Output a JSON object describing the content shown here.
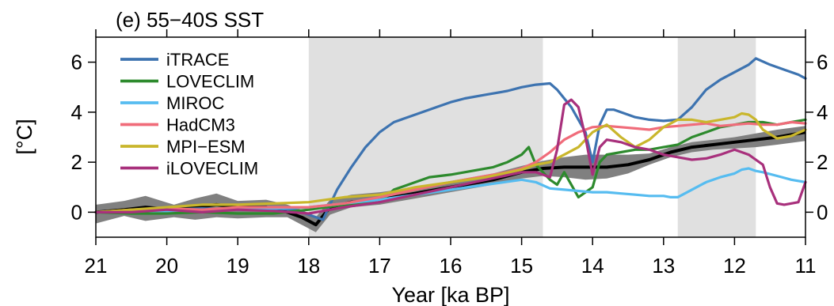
{
  "chart_data": {
    "type": "line",
    "title": "(e) 55−40S SST",
    "xlabel": "Year [ka BP]",
    "ylabel": "[°C]",
    "xlim": [
      21,
      11
    ],
    "x_reversed": true,
    "ylim": [
      -1,
      7
    ],
    "xticks": [
      "21",
      "20",
      "19",
      "18",
      "17",
      "16",
      "15",
      "14",
      "13",
      "12",
      "11"
    ],
    "yticks": [
      "0",
      "2",
      "4",
      "6"
    ],
    "grid": false,
    "legend_position": "top-left",
    "shaded_periods": [
      [
        18,
        14.7
      ],
      [
        12.8,
        11.7
      ]
    ],
    "shade_color": "#e0e0e0",
    "reconstruction": {
      "mean_color": "#000000",
      "band_color": "#808080",
      "x": [
        21.0,
        20.6,
        20.3,
        19.9,
        19.6,
        19.3,
        19.0,
        18.6,
        18.3,
        18.1,
        17.9,
        17.7,
        17.4,
        17.0,
        16.6,
        16.2,
        15.8,
        15.4,
        15.0,
        14.7,
        14.4,
        14.1,
        13.8,
        13.5,
        13.2,
        12.9,
        12.6,
        12.3,
        12.0,
        11.7,
        11.4,
        11.0
      ],
      "mean": [
        0.0,
        0.1,
        0.2,
        0.1,
        0.2,
        0.3,
        0.2,
        0.2,
        0.0,
        -0.2,
        -0.5,
        0.2,
        0.4,
        0.5,
        0.7,
        0.9,
        1.1,
        1.3,
        1.6,
        1.75,
        1.8,
        1.8,
        1.8,
        1.9,
        2.1,
        2.4,
        2.6,
        2.7,
        2.8,
        2.9,
        3.0,
        3.2
      ],
      "lower": [
        -0.45,
        -0.15,
        -0.35,
        -0.2,
        -0.3,
        -0.2,
        -0.25,
        -0.2,
        -0.2,
        -0.5,
        -0.8,
        -0.1,
        0.2,
        0.3,
        0.5,
        0.7,
        0.9,
        1.1,
        1.35,
        1.45,
        1.4,
        1.3,
        1.35,
        1.55,
        1.9,
        2.2,
        2.4,
        2.5,
        2.55,
        2.6,
        2.7,
        2.85
      ],
      "upper": [
        0.3,
        0.45,
        0.65,
        0.3,
        0.55,
        0.75,
        0.45,
        0.5,
        0.3,
        0.1,
        -0.2,
        0.5,
        0.7,
        0.8,
        0.95,
        1.15,
        1.35,
        1.55,
        1.85,
        2.05,
        2.2,
        2.3,
        2.3,
        2.3,
        2.35,
        2.6,
        2.8,
        2.9,
        3.0,
        3.15,
        3.3,
        3.45
      ]
    },
    "series": [
      {
        "name": "iTRACE",
        "color": "#3d73b0",
        "x": [
          21.0,
          20.5,
          20.0,
          19.5,
          19.0,
          18.5,
          18.2,
          18.0,
          17.8,
          17.6,
          17.4,
          17.2,
          17.0,
          16.8,
          16.5,
          16.2,
          16.0,
          15.8,
          15.5,
          15.2,
          15.0,
          14.8,
          14.6,
          14.5,
          14.3,
          14.1,
          14.0,
          13.9,
          13.8,
          13.7,
          13.6,
          13.4,
          13.2,
          13.0,
          12.8,
          12.6,
          12.4,
          12.2,
          12.0,
          11.8,
          11.7,
          11.5,
          11.3,
          11.1,
          11.0
        ],
        "y": [
          0.0,
          0.05,
          0.1,
          0.15,
          0.1,
          0.15,
          0.1,
          -0.1,
          -0.3,
          0.9,
          1.8,
          2.6,
          3.2,
          3.6,
          3.9,
          4.2,
          4.4,
          4.55,
          4.7,
          4.85,
          5.0,
          5.1,
          5.15,
          4.9,
          4.2,
          3.2,
          2.0,
          3.5,
          4.1,
          4.1,
          4.0,
          3.8,
          3.7,
          3.65,
          3.7,
          4.2,
          4.9,
          5.3,
          5.6,
          5.9,
          6.15,
          5.9,
          5.7,
          5.5,
          5.35
        ]
      },
      {
        "name": "LOVECLIM",
        "color": "#2d8a2d",
        "x": [
          21.0,
          20.5,
          20.0,
          19.5,
          19.0,
          18.5,
          18.0,
          17.5,
          17.0,
          16.8,
          16.6,
          16.3,
          16.0,
          15.7,
          15.4,
          15.2,
          15.0,
          14.9,
          14.8,
          14.7,
          14.6,
          14.5,
          14.4,
          14.2,
          14.0,
          13.9,
          13.8,
          13.6,
          13.4,
          13.2,
          13.0,
          12.8,
          12.6,
          12.4,
          12.2,
          12.0,
          11.8,
          11.6,
          11.4,
          11.2,
          11.0
        ],
        "y": [
          0.0,
          -0.05,
          -0.05,
          0.0,
          -0.05,
          -0.05,
          0.1,
          0.3,
          0.4,
          0.9,
          1.1,
          1.4,
          1.5,
          1.65,
          1.8,
          2.0,
          2.3,
          2.6,
          1.9,
          1.6,
          1.3,
          1.1,
          1.6,
          0.6,
          1.0,
          2.0,
          2.3,
          2.4,
          2.5,
          2.5,
          2.6,
          2.7,
          3.0,
          3.2,
          3.4,
          3.5,
          3.6,
          3.6,
          3.5,
          3.6,
          3.7
        ]
      },
      {
        "name": "MIROC",
        "color": "#56bcf0",
        "x": [
          21.0,
          20.5,
          20.0,
          19.5,
          19.0,
          18.5,
          18.0,
          17.5,
          17.0,
          16.5,
          16.0,
          15.5,
          15.0,
          14.8,
          14.6,
          14.4,
          14.2,
          14.0,
          13.8,
          13.6,
          13.4,
          13.2,
          13.0,
          12.9,
          12.8,
          12.6,
          12.4,
          12.2,
          12.0,
          11.9,
          11.8,
          11.7,
          11.6,
          11.4,
          11.2,
          11.0
        ],
        "y": [
          0.0,
          0.05,
          0.05,
          0.1,
          0.1,
          0.15,
          0.2,
          0.35,
          0.5,
          0.7,
          0.9,
          1.1,
          1.3,
          1.2,
          0.95,
          0.9,
          0.85,
          0.8,
          0.8,
          0.75,
          0.7,
          0.65,
          0.65,
          0.6,
          0.6,
          0.9,
          1.2,
          1.4,
          1.55,
          1.7,
          1.75,
          1.65,
          1.6,
          1.45,
          1.3,
          1.2
        ]
      },
      {
        "name": "HadCM3",
        "color": "#f06c7a",
        "x": [
          21.0,
          20.5,
          20.0,
          19.5,
          19.0,
          18.5,
          18.0,
          17.5,
          17.0,
          16.5,
          16.0,
          15.5,
          15.2,
          15.0,
          14.8,
          14.6,
          14.4,
          14.2,
          14.0,
          13.8,
          13.6,
          13.4,
          13.2,
          13.0,
          12.8,
          12.6,
          12.4,
          12.2,
          12.0,
          11.8,
          11.6,
          11.4,
          11.2,
          11.0
        ],
        "y": [
          0.0,
          0.1,
          0.15,
          0.1,
          0.2,
          0.2,
          0.2,
          0.35,
          0.6,
          0.9,
          1.2,
          1.45,
          1.6,
          1.75,
          2.0,
          2.4,
          2.9,
          3.2,
          3.4,
          3.45,
          3.4,
          3.35,
          3.3,
          3.4,
          3.45,
          3.5,
          3.55,
          3.45,
          3.5,
          3.55,
          3.5,
          3.5,
          3.6,
          3.55
        ]
      },
      {
        "name": "MPI−ESM",
        "color": "#c9b62c",
        "x": [
          21.0,
          20.5,
          20.0,
          19.5,
          19.0,
          18.5,
          18.0,
          17.5,
          17.0,
          16.5,
          16.0,
          15.5,
          15.0,
          14.8,
          14.6,
          14.4,
          14.2,
          14.0,
          13.8,
          13.6,
          13.4,
          13.2,
          13.0,
          12.8,
          12.6,
          12.4,
          12.2,
          12.0,
          11.9,
          11.8,
          11.7,
          11.6,
          11.4,
          11.2,
          11.0
        ],
        "y": [
          0.0,
          0.1,
          0.2,
          0.3,
          0.3,
          0.35,
          0.4,
          0.6,
          0.7,
          1.0,
          1.2,
          1.4,
          1.7,
          1.9,
          2.0,
          2.3,
          2.6,
          3.2,
          3.5,
          3.0,
          2.6,
          2.9,
          3.4,
          3.7,
          3.7,
          3.6,
          3.7,
          3.8,
          3.95,
          3.9,
          3.7,
          3.3,
          2.95,
          3.05,
          3.3
        ]
      },
      {
        "name": "iLOVECLIM",
        "color": "#a8307c",
        "x": [
          21.0,
          20.5,
          20.0,
          19.5,
          19.0,
          18.5,
          18.0,
          17.5,
          17.0,
          16.5,
          16.0,
          15.5,
          15.0,
          14.8,
          14.6,
          14.5,
          14.4,
          14.3,
          14.2,
          14.1,
          14.0,
          13.9,
          13.8,
          13.6,
          13.4,
          13.2,
          13.0,
          12.8,
          12.6,
          12.4,
          12.2,
          12.0,
          11.8,
          11.7,
          11.6,
          11.5,
          11.4,
          11.3,
          11.2,
          11.1,
          11.0
        ],
        "y": [
          0.0,
          0.0,
          0.1,
          0.0,
          0.1,
          0.05,
          -0.05,
          0.2,
          0.4,
          0.7,
          1.0,
          1.3,
          1.6,
          1.6,
          1.4,
          2.5,
          4.3,
          4.5,
          4.2,
          3.0,
          1.5,
          2.6,
          2.9,
          2.8,
          2.6,
          2.5,
          2.3,
          2.2,
          2.1,
          2.15,
          2.3,
          2.5,
          2.3,
          2.1,
          1.9,
          1.0,
          0.35,
          0.3,
          0.35,
          0.4,
          1.2
        ]
      }
    ]
  }
}
